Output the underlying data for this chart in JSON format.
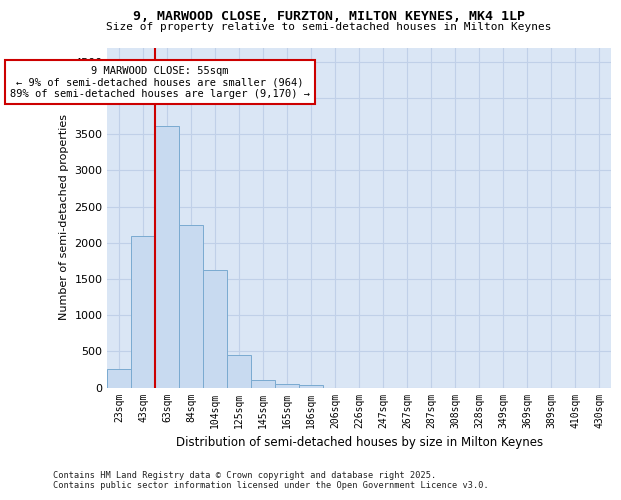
{
  "title": "9, MARWOOD CLOSE, FURZTON, MILTON KEYNES, MK4 1LP",
  "subtitle": "Size of property relative to semi-detached houses in Milton Keynes",
  "xlabel": "Distribution of semi-detached houses by size in Milton Keynes",
  "ylabel": "Number of semi-detached properties",
  "footnote": "Contains HM Land Registry data © Crown copyright and database right 2025.\nContains public sector information licensed under the Open Government Licence v3.0.",
  "bar_labels": [
    "23sqm",
    "43sqm",
    "63sqm",
    "84sqm",
    "104sqm",
    "125sqm",
    "145sqm",
    "165sqm",
    "186sqm",
    "206sqm",
    "226sqm",
    "247sqm",
    "267sqm",
    "287sqm",
    "308sqm",
    "328sqm",
    "349sqm",
    "369sqm",
    "389sqm",
    "410sqm",
    "430sqm"
  ],
  "bar_values": [
    250,
    2100,
    3620,
    2240,
    1620,
    450,
    100,
    50,
    30,
    0,
    0,
    0,
    0,
    0,
    0,
    0,
    0,
    0,
    0,
    0,
    0
  ],
  "bar_color": "#c8daf0",
  "bar_edge_color": "#7aaad0",
  "grid_color": "#c0d0e8",
  "background_color": "#dae6f5",
  "annotation_title": "9 MARWOOD CLOSE: 55sqm",
  "annotation_line1": "← 9% of semi-detached houses are smaller (964)",
  "annotation_line2": "89% of semi-detached houses are larger (9,170) →",
  "annotation_box_facecolor": "#ffffff",
  "annotation_box_edgecolor": "#cc0000",
  "property_line_color": "#cc0000",
  "ylim": [
    0,
    4700
  ],
  "yticks": [
    0,
    500,
    1000,
    1500,
    2000,
    2500,
    3000,
    3500,
    4000,
    4500
  ]
}
